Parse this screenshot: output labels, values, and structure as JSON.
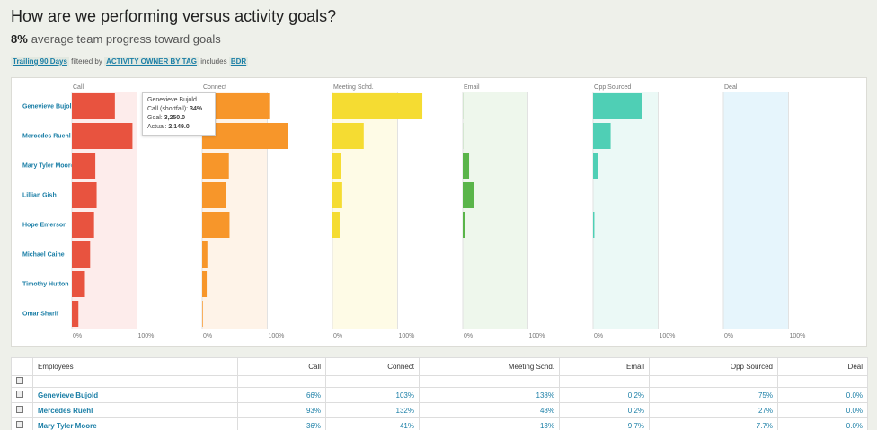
{
  "header": {
    "title": "How are we performing versus activity goals?",
    "progress": "8%",
    "progress_text": "average team progress toward goals"
  },
  "filters": {
    "range": "Trailing 90 Days",
    "filtered_by": "filtered by",
    "field": "ACTIVITY OWNER BY TAG",
    "op": "includes",
    "value": "BDR"
  },
  "chart": {
    "employees": [
      "Genevieve Bujold",
      "Mercedes Ruehl",
      "Mary Tyler Moore",
      "Lillian Gish",
      "Hope Emerson",
      "Michael Caine",
      "Timothy Hutton",
      "Omar Sharif"
    ],
    "xlim": [
      0,
      200
    ],
    "xticks": [
      {
        "value": 0,
        "label": "0%"
      },
      {
        "value": 100,
        "label": "100%"
      }
    ],
    "panels": [
      {
        "name": "Call",
        "color": "#e8533f",
        "background": "#fdeceb",
        "values": [
          66,
          93,
          36,
          38,
          34,
          28,
          20,
          10
        ]
      },
      {
        "name": "Connect",
        "color": "#f7962a",
        "background": "#fef3e8",
        "values": [
          103,
          132,
          41,
          36,
          42,
          8,
          7,
          1
        ]
      },
      {
        "name": "Meeting Schd.",
        "color": "#f5dc32",
        "background": "#fefbe6",
        "values": [
          138,
          48,
          13,
          15,
          11,
          0,
          0,
          0
        ]
      },
      {
        "name": "Email",
        "color": "#5ab54a",
        "background": "#eef7ec",
        "values": [
          0.2,
          0.2,
          9.7,
          17,
          3,
          0,
          0,
          0
        ]
      },
      {
        "name": "Opp Sourced",
        "color": "#4fcfb5",
        "background": "#ebf9f6",
        "values": [
          75,
          27,
          7.7,
          0,
          2,
          0,
          0,
          0
        ]
      },
      {
        "name": "Deal",
        "color": "#5bc0e8",
        "background": "#e6f5fc",
        "values": [
          0,
          0,
          0,
          0,
          0,
          0,
          0,
          0
        ]
      }
    ]
  },
  "tooltip": {
    "name": "Genevieve Bujold",
    "metric": "Call (shortfall):",
    "metric_value": "34%",
    "goal_label": "Goal:",
    "goal": "3,250.0",
    "actual_label": "Actual:",
    "actual": "2,149.0"
  },
  "table": {
    "columns": [
      "Employees",
      "Call",
      "Connect",
      "Meeting Schd.",
      "Email",
      "Opp Sourced",
      "Deal"
    ],
    "rows": [
      [
        "Genevieve Bujold",
        "66%",
        "103%",
        "138%",
        "0.2%",
        "75%",
        "0.0%"
      ],
      [
        "Mercedes Ruehl",
        "93%",
        "132%",
        "48%",
        "0.2%",
        "27%",
        "0.0%"
      ],
      [
        "Mary Tyler Moore",
        "36%",
        "41%",
        "13%",
        "9.7%",
        "7.7%",
        "0.0%"
      ]
    ]
  }
}
